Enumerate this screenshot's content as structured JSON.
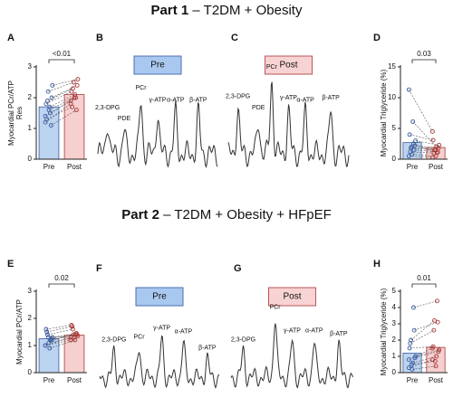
{
  "headings": [
    [
      "Part 1",
      "– T2DM + Obesity"
    ],
    [
      "Part 2",
      "– T2DM + Obesity + HFpEF"
    ]
  ],
  "spectra": [
    {
      "panel": "B",
      "condition": "Pre",
      "peaks": [
        "2,3-DPG",
        "PDE",
        "PCr",
        "γ-ATP",
        "α-ATP",
        "β-ATP"
      ]
    },
    {
      "panel": "C",
      "condition": "Post",
      "peaks": [
        "2,3-DPG",
        "PDE",
        "PCr",
        "γ-ATP",
        "α-ATP",
        "β-ATP"
      ]
    },
    {
      "panel": "F",
      "condition": "Pre",
      "peaks": [
        "2,3-DPG",
        "PCr",
        "γ-ATP",
        "α-ATP",
        "β-ATP"
      ]
    },
    {
      "panel": "G",
      "condition": "Post",
      "peaks": [
        "2,3-DPG",
        "PCr",
        "γ-ATP",
        "α-ATP",
        "β-ATP"
      ]
    }
  ],
  "chart_data": [
    {
      "type": "bar",
      "panel": "A",
      "ylabel": [
        "Myocardial PCr/ATP",
        "Res"
      ],
      "categories": [
        "Pre",
        "Post"
      ],
      "values": [
        1.7,
        2.1
      ],
      "colors": [
        "#bcd4f0",
        "#f6cfcf"
      ],
      "point_colors": [
        "#3a5a9e",
        "#a83838"
      ],
      "annotation": "<0.01",
      "ylim": [
        0,
        3
      ],
      "yticks": [
        0,
        1,
        2,
        3
      ],
      "pre_points": [
        1.2,
        1.5,
        1.9,
        2.4,
        1.7,
        1.3,
        2.0,
        1.6,
        1.8,
        1.1,
        2.2,
        1.4
      ],
      "post_points": [
        1.8,
        2.0,
        2.3,
        2.6,
        2.1,
        1.7,
        2.4,
        2.0,
        2.2,
        1.6,
        2.5,
        1.9
      ]
    },
    {
      "type": "bar",
      "panel": "D",
      "ylabel": [
        "Myocardial Triglyceride (%)"
      ],
      "categories": [
        "Pre",
        "Post"
      ],
      "values": [
        2.7,
        1.9
      ],
      "colors": [
        "#bcd4f0",
        "#f6cfcf"
      ],
      "point_colors": [
        "#3a5a9e",
        "#a83838"
      ],
      "annotation": "0.03",
      "ylim": [
        0,
        15
      ],
      "yticks": [
        0,
        5,
        10,
        15
      ],
      "pre_points": [
        11.3,
        2.5,
        1.8,
        3.0,
        6.1,
        1.2,
        2.2,
        0.8,
        4.0,
        1.5,
        2.0,
        0.5
      ],
      "post_points": [
        4.5,
        1.0,
        1.5,
        2.3,
        2.0,
        1.0,
        1.8,
        0.5,
        3.1,
        1.2,
        1.6,
        0.3
      ]
    },
    {
      "type": "bar",
      "panel": "E",
      "ylabel": [
        "Myocardial PCr/ATP"
      ],
      "categories": [
        "Pre",
        "Post"
      ],
      "values": [
        1.25,
        1.38
      ],
      "colors": [
        "#bcd4f0",
        "#f6cfcf"
      ],
      "point_colors": [
        "#3a5a9e",
        "#a83838"
      ],
      "annotation": "0.02",
      "ylim": [
        0,
        3
      ],
      "yticks": [
        0,
        1,
        2,
        3
      ],
      "pre_points": [
        1.0,
        1.2,
        1.4,
        1.3,
        0.9,
        1.5,
        1.2,
        1.1,
        1.6,
        1.25,
        1.3,
        1.0
      ],
      "post_points": [
        1.3,
        1.4,
        1.6,
        1.35,
        1.2,
        1.7,
        1.4,
        1.3,
        1.75,
        1.45,
        1.4,
        1.2
      ]
    },
    {
      "type": "bar",
      "panel": "H",
      "ylabel": [
        "Myocardial Triglyceride (%)"
      ],
      "categories": [
        "Pre",
        "Post"
      ],
      "values": [
        1.2,
        1.55
      ],
      "colors": [
        "#bcd4f0",
        "#f6cfcf"
      ],
      "point_colors": [
        "#3a5a9e",
        "#a83838"
      ],
      "annotation": "0.01",
      "ylim": [
        0,
        5
      ],
      "yticks": [
        0,
        1,
        2,
        3,
        4,
        5
      ],
      "pre_points": [
        0.3,
        4.0,
        2.0,
        1.0,
        0.6,
        1.8,
        0.9,
        0.2,
        1.5,
        2.6,
        0.5,
        0.8
      ],
      "post_points": [
        0.8,
        4.4,
        3.2,
        1.4,
        1.0,
        2.6,
        1.3,
        0.4,
        1.6,
        3.1,
        0.7,
        1.5
      ]
    }
  ]
}
